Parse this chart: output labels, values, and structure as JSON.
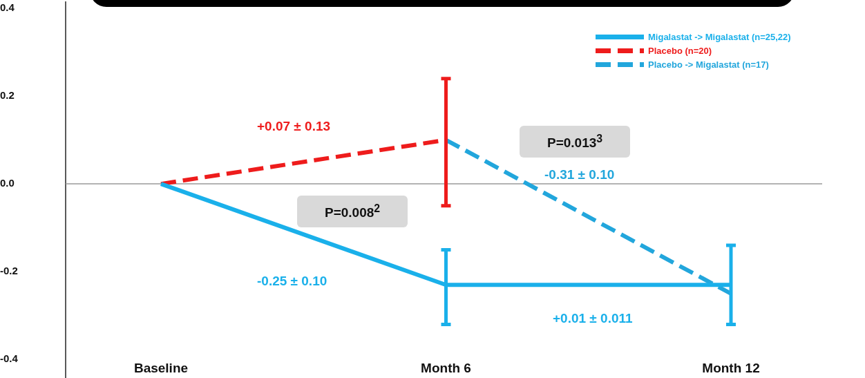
{
  "chart_data": {
    "type": "line",
    "categories": [
      "Baseline",
      "Month 6",
      "Month 12"
    ],
    "series": [
      {
        "name": "Migalastat -> Migalastat (n=25,22)",
        "color": "#1ab0ea",
        "values": [
          0,
          -0.23,
          -0.23
        ],
        "line_style": "solid",
        "errors": [
          null,
          [
            -0.32,
            -0.15
          ],
          [
            -0.32,
            -0.14
          ]
        ]
      },
      {
        "name": "Placebo (n=20)",
        "color": "#ee1c1c",
        "values": [
          0,
          0.1,
          null
        ],
        "line_style": "dashed",
        "errors": [
          null,
          [
            -0.05,
            0.24
          ],
          null
        ]
      },
      {
        "name": "Placebo -> Migalastat (n=17)",
        "color": "#22a6dc",
        "values": [
          null,
          0.1,
          -0.25
        ],
        "line_style": "dashed"
      }
    ],
    "ylim": [
      -0.4,
      0.4
    ],
    "yticks": [
      {
        "value": -0.4,
        "label": "-0.4"
      },
      -0.2,
      {
        "value": 0,
        "label": "0.0"
      },
      0.2,
      0.4
    ],
    "ref_lines": [
      {
        "axis": "y",
        "value": 0,
        "color": "#9a9a9a"
      }
    ],
    "annotations": [
      "+0.07 ± 0.13",
      "P=0.008$^{2}$",
      "-0.25 ± 0.10",
      "P=0.013$^{3}$",
      "-0.31 ± 0.10",
      "+0.01 ± 0.011"
    ],
    "marker": "none",
    "grid": false,
    "legend": "top right"
  }
}
